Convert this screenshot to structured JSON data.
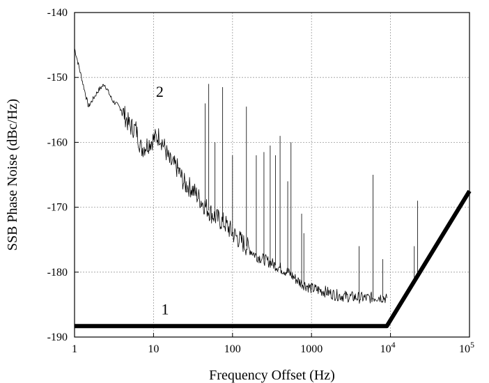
{
  "chart_data": {
    "type": "line",
    "title": "",
    "xlabel": "Frequency Offset (Hz)",
    "ylabel": "SSB Phase Noise (dBc/Hz)",
    "x_scale": "log",
    "xlim": [
      1,
      100000
    ],
    "ylim": [
      -190,
      -140
    ],
    "grid": true,
    "legend": "none",
    "x_ticks": [
      {
        "value": 1,
        "label": "1"
      },
      {
        "value": 10,
        "label": "10"
      },
      {
        "value": 100,
        "label": "100"
      },
      {
        "value": 1000,
        "label": "1000"
      },
      {
        "value": 10000,
        "label": "10",
        "exp": "4"
      },
      {
        "value": 100000,
        "label": "10",
        "exp": "5"
      }
    ],
    "y_ticks": [
      -140,
      -150,
      -160,
      -170,
      -180,
      -190
    ],
    "series": [
      {
        "name": "1",
        "color": "#000000",
        "x": [
          1,
          9000,
          100000
        ],
        "y": [
          -188.3,
          -188.3,
          -167.5
        ]
      },
      {
        "name": "2",
        "color": "#000000",
        "x": [
          1,
          1.5,
          2,
          2.4,
          3,
          4,
          5,
          6,
          7,
          8,
          10,
          12,
          14,
          16,
          20,
          25,
          30,
          40,
          50,
          60,
          80,
          100,
          150,
          200,
          300,
          500,
          700,
          1000,
          1500,
          2000,
          3000,
          5000,
          7000,
          9000
        ],
        "y": [
          -145.5,
          -154.5,
          -152.0,
          -151.0,
          -153.5,
          -155.0,
          -157.5,
          -158.0,
          -161.0,
          -160.5,
          -159.5,
          -159.0,
          -161.0,
          -163.0,
          -164.0,
          -166.5,
          -167.0,
          -169.0,
          -170.5,
          -171.5,
          -172.5,
          -174.0,
          -176.0,
          -177.5,
          -178.5,
          -180.0,
          -181.5,
          -182.5,
          -183.0,
          -183.5,
          -183.8,
          -184.0,
          -183.8,
          -184.0
        ]
      }
    ],
    "spurs": [
      {
        "x": 45,
        "y": -154
      },
      {
        "x": 50,
        "y": -151
      },
      {
        "x": 60,
        "y": -160
      },
      {
        "x": 75,
        "y": -151.5
      },
      {
        "x": 100,
        "y": -162
      },
      {
        "x": 150,
        "y": -154.5
      },
      {
        "x": 200,
        "y": -162
      },
      {
        "x": 250,
        "y": -161.5
      },
      {
        "x": 300,
        "y": -160.5
      },
      {
        "x": 350,
        "y": -162
      },
      {
        "x": 400,
        "y": -159
      },
      {
        "x": 500,
        "y": -166
      },
      {
        "x": 550,
        "y": -160
      },
      {
        "x": 750,
        "y": -171
      },
      {
        "x": 800,
        "y": -174
      },
      {
        "x": 4000,
        "y": -176
      },
      {
        "x": 6000,
        "y": -165
      },
      {
        "x": 8000,
        "y": -178
      },
      {
        "x": 20000,
        "y": -176
      },
      {
        "x": 22000,
        "y": -169
      }
    ],
    "annotations": [
      {
        "text": "2",
        "x": 12,
        "y": -153
      },
      {
        "text": "1",
        "x": 14,
        "y": -186.5
      }
    ]
  }
}
